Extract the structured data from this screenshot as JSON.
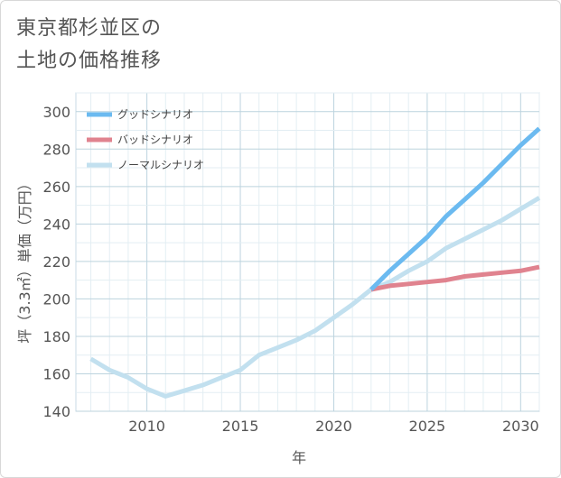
{
  "chart_data": {
    "type": "line",
    "title": "東京都杉並区の\n土地の価格推移",
    "xlabel": "年",
    "ylabel": "坪（3.3㎡）単価（万円）",
    "xlim": [
      2006.2,
      2031
    ],
    "ylim": [
      140,
      310
    ],
    "xticks": [
      2010,
      2015,
      2020,
      2025,
      2030
    ],
    "yticks": [
      140,
      160,
      180,
      200,
      220,
      240,
      260,
      280,
      300
    ],
    "grid": true,
    "legend_position": "top-left",
    "series": [
      {
        "name": "グッドシナリオ",
        "color": "#6bbaf0",
        "x": [
          2022,
          2023,
          2024,
          2025,
          2026,
          2027,
          2028,
          2029,
          2030,
          2031
        ],
        "y": [
          205,
          215,
          224,
          233,
          244,
          253,
          262,
          272,
          282,
          291
        ]
      },
      {
        "name": "バッドシナリオ",
        "color": "#e0838f",
        "x": [
          2022,
          2023,
          2024,
          2025,
          2026,
          2027,
          2028,
          2029,
          2030,
          2031
        ],
        "y": [
          205,
          207,
          208,
          209,
          210,
          212,
          213,
          214,
          215,
          217
        ]
      },
      {
        "name": "ノーマルシナリオ",
        "color": "#c2e0ef",
        "x": [
          2007,
          2008,
          2009,
          2010,
          2011,
          2012,
          2013,
          2014,
          2015,
          2016,
          2017,
          2018,
          2019,
          2020,
          2021,
          2022,
          2023,
          2024,
          2025,
          2026,
          2027,
          2028,
          2029,
          2030,
          2031
        ],
        "y": [
          168,
          162,
          158,
          152,
          148,
          151,
          154,
          158,
          162,
          170,
          174,
          178,
          183,
          190,
          197,
          205,
          209,
          215,
          220,
          227,
          232,
          237,
          242,
          248,
          254
        ]
      }
    ]
  }
}
